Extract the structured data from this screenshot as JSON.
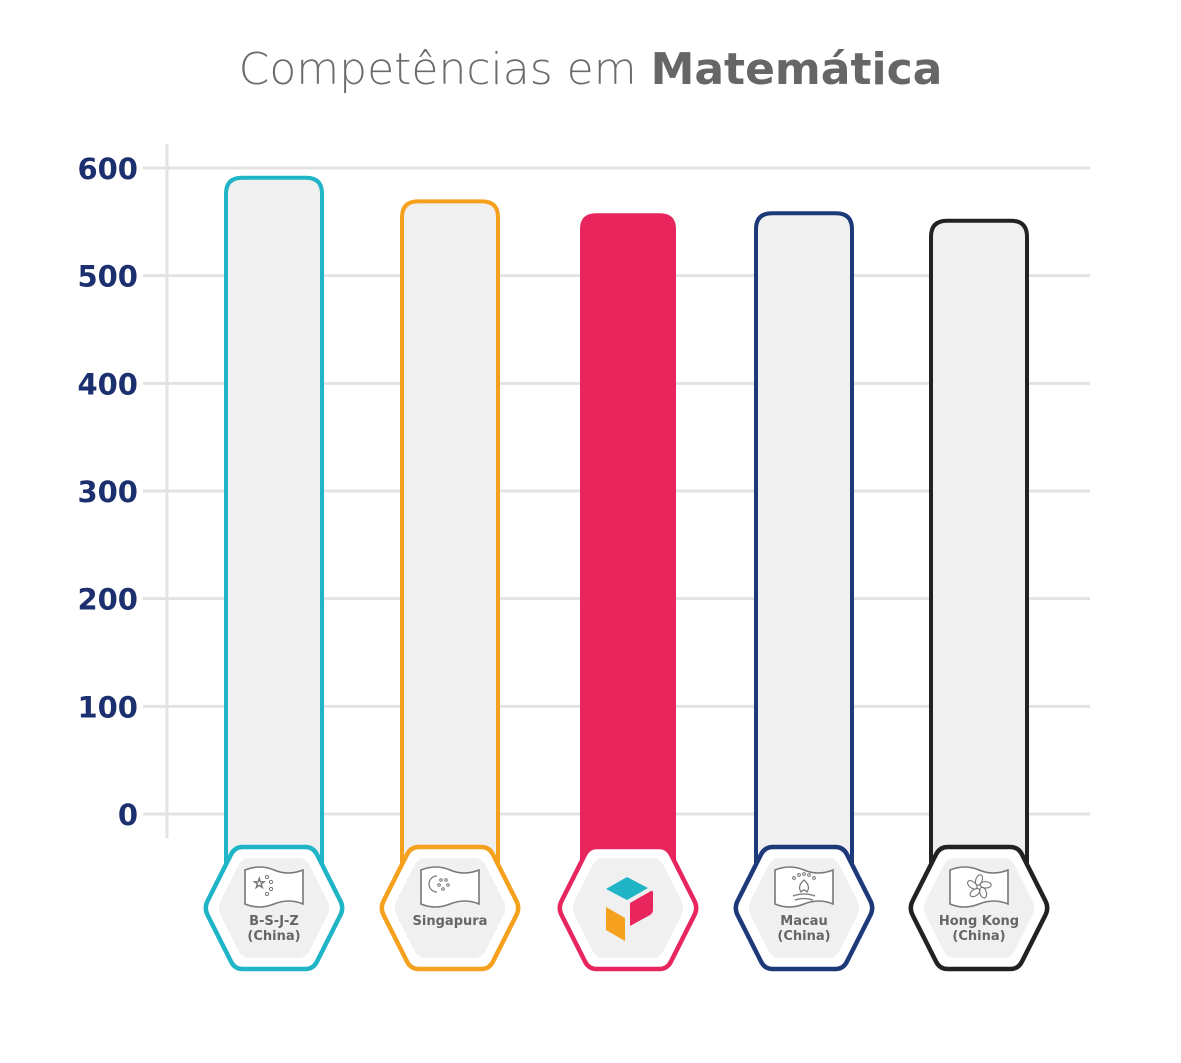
{
  "title": {
    "regular": "Competências em",
    "bold": "Matemática"
  },
  "colors": {
    "grid": "#e3e3e3",
    "axis_text": "#1c2f6e",
    "bar_fill": "#f0f0f0",
    "brand_pink": "#e8255d",
    "brand_teal": "#1fb4c6",
    "brand_orange": "#f5a11e"
  },
  "chart_data": {
    "type": "bar",
    "title": "Competências em Matemática",
    "xlabel": "",
    "ylabel": "",
    "ylim": [
      0,
      600
    ],
    "yticks": [
      0,
      100,
      200,
      300,
      400,
      500,
      600
    ],
    "grid": true,
    "categories": [
      {
        "label_lines": [
          "B-S-J-Z",
          "(China)"
        ],
        "icon": "china-flag-icon",
        "color": "#1fb4c6",
        "filled": false
      },
      {
        "label_lines": [
          "Singapura"
        ],
        "icon": "singapore-flag-icon",
        "color": "#f5a11e",
        "filled": false
      },
      {
        "label_lines": [],
        "icon": "brand-logo-icon",
        "color": "#e8255d",
        "filled": true
      },
      {
        "label_lines": [
          "Macau",
          "(China)"
        ],
        "icon": "macau-flag-icon",
        "color": "#1c3a7a",
        "filled": false
      },
      {
        "label_lines": [
          "Hong Kong",
          "(China)"
        ],
        "icon": "hong-kong-flag-icon",
        "color": "#222222",
        "filled": false
      }
    ],
    "values": [
      591,
      569,
      558,
      558,
      551
    ]
  }
}
